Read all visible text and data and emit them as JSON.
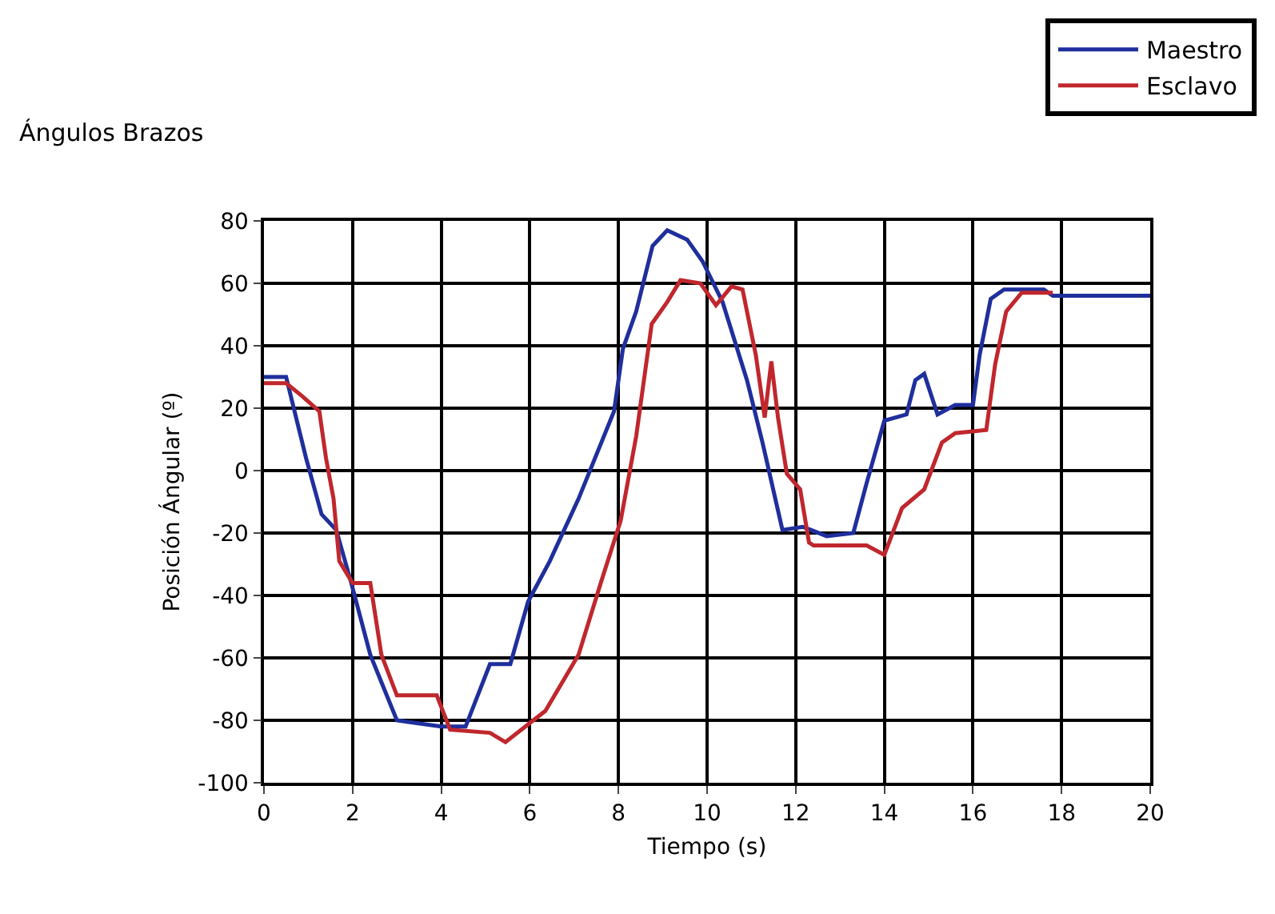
{
  "chart_data": {
    "type": "line",
    "title": "Ángulos Brazos",
    "xlabel": "Tiempo (s)",
    "ylabel": "Posición Ángular (º)",
    "xlim": [
      0,
      20
    ],
    "ylim": [
      -100,
      80
    ],
    "xticks": [
      0,
      2,
      4,
      6,
      8,
      10,
      12,
      14,
      16,
      18,
      20
    ],
    "yticks": [
      -100,
      -80,
      -60,
      -40,
      -20,
      0,
      20,
      40,
      60,
      80
    ],
    "grid": true,
    "legend": "top right",
    "marker": "none",
    "line_style": "solid",
    "series": [
      {
        "name": "Maestro",
        "color": "#1f2f9c",
        "x": [
          0,
          0.5,
          0.95,
          1.3,
          1.63,
          1.97,
          2.4,
          3,
          4,
          4.55,
          5.1,
          5.56,
          5.96,
          6.45,
          7.1,
          7.9,
          8.1,
          8.4,
          8.77,
          9.1,
          9.55,
          9.9,
          10.35,
          10.9,
          11.25,
          11.7,
          12.16,
          12.7,
          13.3,
          13.6,
          14,
          14.5,
          14.7,
          14.9,
          15.2,
          15.6,
          16,
          16.15,
          16.4,
          16.7,
          17.6,
          17.8,
          20
        ],
        "values": [
          30,
          30,
          4,
          -14,
          -19,
          -36,
          -59,
          -80,
          -82,
          -82,
          -62,
          -62,
          -42,
          -29,
          -9,
          19,
          39,
          51,
          72,
          77,
          74,
          67,
          54,
          29,
          9,
          -19,
          -18,
          -21,
          -20,
          -4,
          16,
          18,
          29,
          31,
          18,
          21,
          21,
          37,
          55,
          58,
          58,
          56,
          56
        ]
      },
      {
        "name": "Esclavo",
        "color": "#c0272d",
        "x": [
          0,
          0.5,
          0.85,
          1.25,
          1.4,
          1.57,
          1.7,
          2,
          2.4,
          2.65,
          3,
          3.9,
          4.2,
          5.1,
          5.45,
          5.9,
          6.35,
          7.1,
          7.6,
          8.05,
          8.4,
          8.75,
          9.1,
          9.4,
          9.85,
          10.2,
          10.55,
          10.8,
          11.1,
          11.3,
          11.45,
          11.6,
          11.8,
          12.1,
          12.3,
          12.4,
          13.6,
          14,
          14.4,
          14.9,
          15.3,
          15.6,
          16.3,
          16.5,
          16.75,
          17.1,
          17.8
        ],
        "values": [
          28,
          28,
          24,
          19,
          4,
          -9,
          -29,
          -36,
          -36,
          -59,
          -72,
          -72,
          -83,
          -84,
          -87,
          -82,
          -77,
          -59,
          -36,
          -16,
          11,
          47,
          54,
          61,
          60,
          53,
          59,
          58,
          37,
          17,
          35,
          17,
          -1,
          -6,
          -23,
          -24,
          -24,
          -27,
          -12,
          -6,
          9,
          12,
          13,
          34,
          51,
          57,
          57
        ]
      }
    ]
  }
}
